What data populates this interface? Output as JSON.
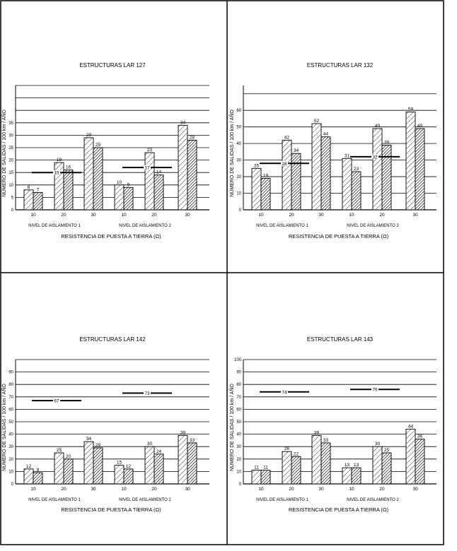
{
  "figure": {
    "y_axis_label": "NÚMERO  DE  SALIDAS  /  100  km  /  AÑO",
    "x_axis_label": "RESISTENCIA  DE  PUESTA  A  TIERRA  (Ω)",
    "group_labels": [
      "NIVEL  DE  AISLAMIENTO  1",
      "NIVEL  DE  AISLAMIENTO  2"
    ]
  },
  "chart_data": [
    {
      "type": "bar",
      "title": "ESTRUCTURAS  LAR  127",
      "categories": [
        "10",
        "20",
        "30",
        "10",
        "20",
        "30"
      ],
      "series": [
        {
          "pattern": "hatched",
          "values": [
            8,
            19,
            29,
            10,
            23,
            34
          ]
        },
        {
          "pattern": "dark-hatched",
          "values": [
            7,
            16,
            25,
            9,
            14,
            28
          ]
        }
      ],
      "reference_lines": [
        {
          "group": 1,
          "value": 15
        },
        {
          "group": 2,
          "value": 17
        }
      ],
      "ylim": [
        0,
        50
      ],
      "yticks": [
        0,
        5,
        10,
        15,
        20,
        25,
        30,
        35
      ],
      "grid_step": 5,
      "show_tick_labels": true
    },
    {
      "type": "bar",
      "title": "ESTRUCTURAS  LAR  132",
      "categories": [
        "10",
        "20",
        "30",
        "10",
        "20",
        "30"
      ],
      "series": [
        {
          "pattern": "hatched",
          "values": [
            25,
            42,
            52,
            31,
            49,
            59
          ]
        },
        {
          "pattern": "dark-hatched",
          "values": [
            19,
            34,
            44,
            23,
            39,
            49
          ]
        }
      ],
      "reference_lines": [
        {
          "group": 1,
          "value": 28
        },
        {
          "group": 2,
          "value": 32
        }
      ],
      "ylim": [
        0,
        75
      ],
      "yticks": [
        0,
        10,
        20,
        30,
        40,
        50,
        60
      ],
      "grid_step": 10,
      "show_tick_labels": true
    },
    {
      "type": "bar",
      "title": "ESTRUCTURAS  LAR  142",
      "categories": [
        "10",
        "20",
        "30",
        "10",
        "20",
        "30"
      ],
      "series": [
        {
          "pattern": "hatched",
          "values": [
            12,
            25,
            34,
            15,
            30,
            39
          ]
        },
        {
          "pattern": "dark-hatched",
          "values": [
            9,
            20,
            29,
            12,
            24,
            33
          ]
        }
      ],
      "reference_lines": [
        {
          "group": 1,
          "value": 67
        },
        {
          "group": 2,
          "value": 73
        }
      ],
      "ylim": [
        0,
        100
      ],
      "yticks": [
        0,
        10,
        20,
        30,
        40,
        50,
        60,
        70,
        80,
        90
      ],
      "grid_step": 10,
      "show_tick_labels": false
    },
    {
      "type": "bar",
      "title": "ESTRUCTURAS  LAR  143",
      "categories": [
        "10",
        "20",
        "30",
        "10",
        "20",
        "30"
      ],
      "series": [
        {
          "pattern": "hatched",
          "values": [
            11,
            26,
            39,
            13,
            30,
            44
          ]
        },
        {
          "pattern": "dark-hatched",
          "values": [
            11,
            22,
            33,
            13,
            25,
            36
          ]
        }
      ],
      "reference_lines": [
        {
          "group": 1,
          "value": 74
        },
        {
          "group": 2,
          "value": 76
        }
      ],
      "ylim": [
        0,
        100
      ],
      "yticks": [
        0,
        10,
        20,
        30,
        40,
        50,
        60,
        70,
        80,
        90,
        100
      ],
      "grid_step": 10,
      "show_tick_labels": false
    }
  ]
}
